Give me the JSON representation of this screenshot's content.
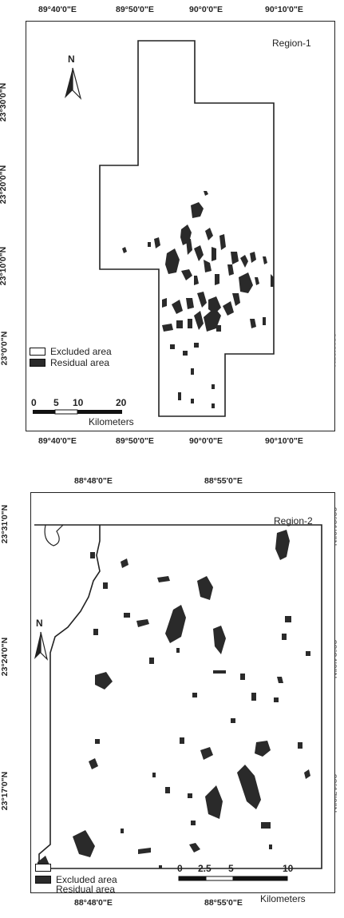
{
  "region1": {
    "title": "Region-1",
    "north_label": "N",
    "top_ticks": [
      "89°40'0\"E",
      "89°50'0\"E",
      "90°0'0\"E",
      "90°10'0\"E"
    ],
    "bottom_ticks": [
      "89°40'0\"E",
      "89°50'0\"E",
      "90°0'0\"E",
      "90°10'0\"E"
    ],
    "left_ticks": [
      "23°30'0\"N",
      "23°20'0\"N",
      "23°10'0\"N",
      "23°0'0\"N"
    ],
    "right_ticks": [
      "23°30'0\"N",
      "23°20'0\"N",
      "23°10'0\"N",
      "23°0'0\"N"
    ],
    "legend": {
      "excluded": "Excluded area",
      "residual": "Residual area"
    },
    "scale": {
      "labels": [
        "0",
        "5",
        "10",
        "20"
      ],
      "unit": "Kilometers"
    }
  },
  "region2": {
    "title": "Region-2",
    "north_label": "N",
    "top_ticks": [
      "88°48'0\"E",
      "88°55'0\"E"
    ],
    "bottom_ticks": [
      "88°48'0\"E",
      "88°55'0\"E"
    ],
    "left_ticks": [
      "23°31'0\"N",
      "23°24'0\"N",
      "23°17'0\"N"
    ],
    "right_ticks": [
      "23°31'0\"N",
      "23°24'0\"N",
      "23°17'0\"N"
    ],
    "legend": {
      "excluded": "Excluded area",
      "residual": "Residual area"
    },
    "scale": {
      "labels": [
        "0",
        "2.5",
        "5",
        "10"
      ],
      "unit": "Kilometers"
    }
  },
  "colors": {
    "residual_fill": "#2a2a2a",
    "frame": "#222222",
    "excluded_fill": "#ffffff"
  }
}
